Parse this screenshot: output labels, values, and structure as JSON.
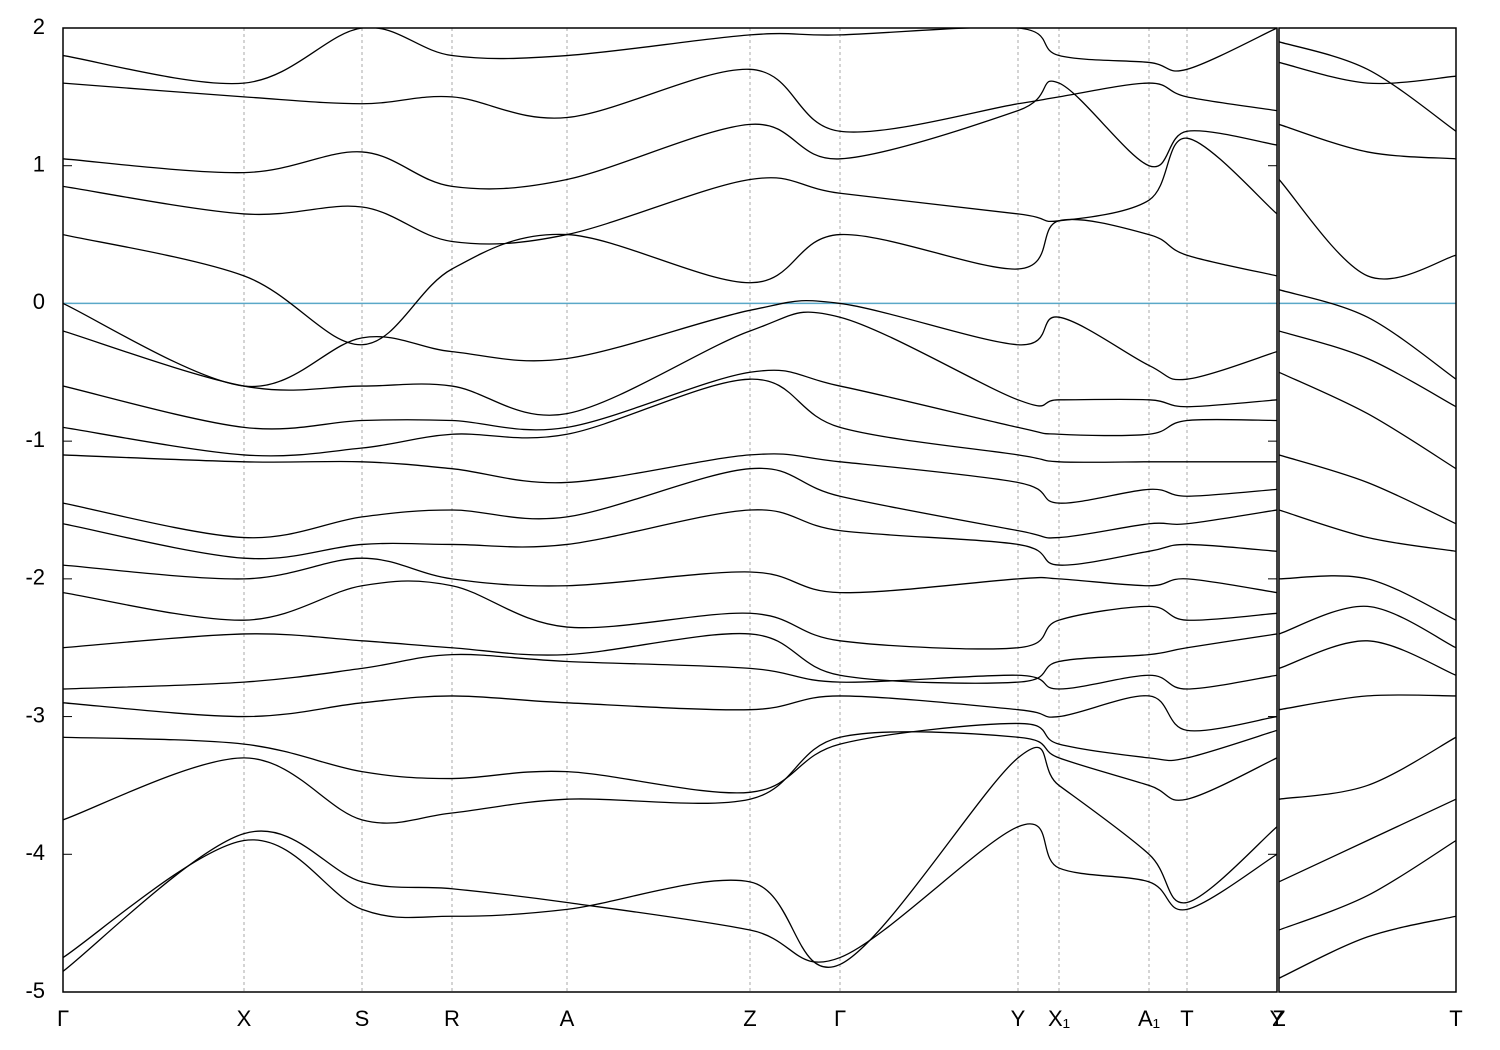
{
  "chart_data": [
    {
      "type": "line",
      "color": "#000000",
      "grid": true,
      "hline": {
        "value": 0,
        "color": "#5aa8c8"
      },
      "x": [
        0,
        0.181,
        0.299,
        0.389,
        0.504,
        0.687,
        0.777,
        0.955,
        0.996,
        1.086,
        1.124,
        1.214
      ],
      "xlim": [
        0,
        1.214
      ],
      "xticks": [
        {
          "value": 0,
          "label": "Γ"
        },
        {
          "value": 0.181,
          "label": "X"
        },
        {
          "value": 0.299,
          "label": "S"
        },
        {
          "value": 0.389,
          "label": "R"
        },
        {
          "value": 0.504,
          "label": "A"
        },
        {
          "value": 0.687,
          "label": "Z"
        },
        {
          "value": 0.777,
          "label": "Γ"
        },
        {
          "value": 0.955,
          "label": "Y"
        },
        {
          "value": 0.996,
          "label": "X₁"
        },
        {
          "value": 1.086,
          "label": "A₁"
        },
        {
          "value": 1.124,
          "label": "T"
        },
        {
          "value": 1.214,
          "label": "Y"
        }
      ],
      "ylim": [
        -5,
        2
      ],
      "yticks": [
        -5,
        -4,
        -3,
        -2,
        -1,
        0,
        1,
        2
      ],
      "series": [
        {
          "values": [
            -4.85,
            -3.85,
            -4.2,
            -4.25,
            -4.35,
            -4.55,
            -4.75,
            -3.8,
            -4.1,
            -4.2,
            -4.4,
            -4.0
          ]
        },
        {
          "values": [
            -4.75,
            -3.9,
            -4.4,
            -4.45,
            -4.4,
            -4.2,
            -4.8,
            -3.3,
            -3.5,
            -4.0,
            -4.35,
            -3.8
          ]
        },
        {
          "values": [
            -3.75,
            -3.3,
            -3.75,
            -3.7,
            -3.6,
            -3.6,
            -3.15,
            -3.15,
            -3.3,
            -3.5,
            -3.6,
            -3.3
          ]
        },
        {
          "values": [
            -3.15,
            -3.2,
            -3.4,
            -3.45,
            -3.4,
            -3.55,
            -3.2,
            -3.05,
            -3.2,
            -3.3,
            -3.3,
            -3.1
          ]
        },
        {
          "values": [
            -2.9,
            -3.0,
            -2.9,
            -2.85,
            -2.9,
            -2.95,
            -2.85,
            -2.95,
            -3.0,
            -2.85,
            -3.1,
            -3.0
          ]
        },
        {
          "values": [
            -2.8,
            -2.75,
            -2.65,
            -2.55,
            -2.6,
            -2.65,
            -2.75,
            -2.7,
            -2.8,
            -2.7,
            -2.8,
            -2.7
          ]
        },
        {
          "values": [
            -2.5,
            -2.4,
            -2.45,
            -2.5,
            -2.55,
            -2.4,
            -2.7,
            -2.75,
            -2.6,
            -2.55,
            -2.5,
            -2.4
          ]
        },
        {
          "values": [
            -2.1,
            -2.3,
            -2.05,
            -2.05,
            -2.35,
            -2.25,
            -2.45,
            -2.5,
            -2.3,
            -2.2,
            -2.3,
            -2.25
          ]
        },
        {
          "values": [
            -1.9,
            -2.0,
            -1.85,
            -2.0,
            -2.05,
            -1.95,
            -2.1,
            -2.0,
            -2.0,
            -2.05,
            -2.0,
            -2.1
          ]
        },
        {
          "values": [
            -1.6,
            -1.85,
            -1.75,
            -1.75,
            -1.75,
            -1.5,
            -1.65,
            -1.75,
            -1.9,
            -1.8,
            -1.75,
            -1.8
          ]
        },
        {
          "values": [
            -1.45,
            -1.7,
            -1.55,
            -1.5,
            -1.55,
            -1.2,
            -1.4,
            -1.65,
            -1.7,
            -1.6,
            -1.6,
            -1.5
          ]
        },
        {
          "values": [
            -1.1,
            -1.15,
            -1.15,
            -1.2,
            -1.3,
            -1.1,
            -1.15,
            -1.3,
            -1.45,
            -1.35,
            -1.4,
            -1.35
          ]
        },
        {
          "values": [
            -0.9,
            -1.1,
            -1.05,
            -0.95,
            -0.95,
            -0.55,
            -0.9,
            -1.1,
            -1.15,
            -1.15,
            -1.15,
            -1.15
          ]
        },
        {
          "values": [
            -0.6,
            -0.9,
            -0.85,
            -0.85,
            -0.9,
            -0.5,
            -0.6,
            -0.9,
            -0.95,
            -0.95,
            -0.85,
            -0.85
          ]
        },
        {
          "values": [
            -0.2,
            -0.6,
            -0.6,
            -0.6,
            -0.8,
            -0.2,
            -0.1,
            -0.7,
            -0.7,
            -0.7,
            -0.75,
            -0.7
          ]
        },
        {
          "values": [
            0.0,
            -0.6,
            -0.25,
            -0.35,
            -0.4,
            -0.05,
            0.0,
            -0.3,
            -0.1,
            -0.45,
            -0.55,
            -0.35
          ]
        },
        {
          "values": [
            0.5,
            0.2,
            -0.3,
            0.25,
            0.5,
            0.15,
            0.5,
            0.25,
            0.6,
            0.5,
            0.35,
            0.2
          ]
        },
        {
          "values": [
            0.85,
            0.65,
            0.7,
            0.45,
            0.5,
            0.9,
            0.8,
            0.65,
            0.6,
            0.75,
            1.2,
            0.65
          ]
        },
        {
          "values": [
            1.05,
            0.95,
            1.1,
            0.85,
            0.9,
            1.3,
            1.05,
            1.4,
            1.6,
            1.0,
            1.25,
            1.15
          ]
        },
        {
          "values": [
            1.6,
            1.5,
            1.45,
            1.5,
            1.35,
            1.7,
            1.25,
            1.45,
            1.5,
            1.6,
            1.5,
            1.4
          ]
        },
        {
          "values": [
            1.8,
            1.6,
            2.0,
            1.8,
            1.8,
            1.95,
            1.95,
            2.0,
            1.8,
            1.75,
            1.7,
            2.0
          ]
        }
      ]
    },
    {
      "type": "line",
      "color": "#000000",
      "grid": true,
      "hline": {
        "value": 0,
        "color": "#5aa8c8"
      },
      "x": [
        0,
        0.0885,
        0.177
      ],
      "xlim": [
        0,
        0.177
      ],
      "xticks": [
        {
          "value": 0,
          "label": "Z"
        },
        {
          "value": 0.177,
          "label": "T"
        }
      ],
      "ylim": [
        -5,
        2
      ],
      "series": [
        {
          "values": [
            -4.9,
            -4.6,
            -4.45
          ]
        },
        {
          "values": [
            -4.55,
            -4.3,
            -3.9
          ]
        },
        {
          "values": [
            -4.2,
            -3.9,
            -3.6
          ]
        },
        {
          "values": [
            -3.6,
            -3.5,
            -3.15
          ]
        },
        {
          "values": [
            -2.95,
            -2.85,
            -2.85
          ]
        },
        {
          "values": [
            -2.65,
            -2.45,
            -2.7
          ]
        },
        {
          "values": [
            -2.4,
            -2.2,
            -2.5
          ]
        },
        {
          "values": [
            -2.0,
            -2.0,
            -2.3
          ]
        },
        {
          "values": [
            -1.5,
            -1.7,
            -1.8
          ]
        },
        {
          "values": [
            -1.1,
            -1.3,
            -1.6
          ]
        },
        {
          "values": [
            -0.5,
            -0.8,
            -1.2
          ]
        },
        {
          "values": [
            -0.2,
            -0.4,
            -0.75
          ]
        },
        {
          "values": [
            0.1,
            -0.1,
            -0.55
          ]
        },
        {
          "values": [
            0.9,
            0.2,
            0.35
          ]
        },
        {
          "values": [
            1.3,
            1.1,
            1.05
          ]
        },
        {
          "values": [
            1.9,
            1.7,
            1.25
          ]
        },
        {
          "values": [
            1.75,
            1.6,
            1.65
          ]
        }
      ]
    }
  ]
}
